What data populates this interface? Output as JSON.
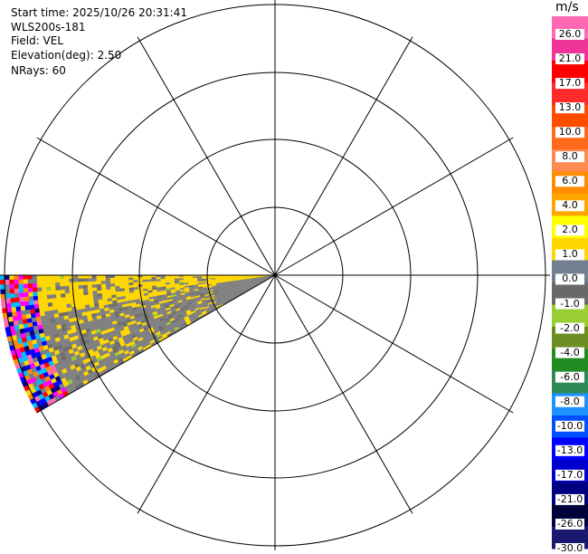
{
  "info": {
    "start_time": "Start time: 2025/10/26 20:31:41",
    "instrument": "WLS200s-181",
    "field": "Field: VEL",
    "elevation": "Elevation(deg): 2.50",
    "nrays": "NRays: 60"
  },
  "colorbar": {
    "unit": "m/s",
    "ticks": [
      "26.0",
      "21.0",
      "17.0",
      "13.0",
      "10.0",
      "8.0",
      "6.0",
      "4.0",
      "2.0",
      "1.0",
      "0.0",
      "-1.0",
      "-2.0",
      "-4.0",
      "-6.0",
      "-8.0",
      "-10.0",
      "-13.0",
      "-17.0",
      "-21.0",
      "-26.0",
      "-30.0"
    ],
    "colors": [
      "#ff69b4",
      "#ee3399",
      "#ff0000",
      "#ff2b2b",
      "#ff4d00",
      "#ff6a1a",
      "#ff8a50",
      "#ff8c00",
      "#ffa500",
      "#ffff00",
      "#ffd700",
      "#708090",
      "#696969",
      "#9acd32",
      "#6b8e23",
      "#228b22",
      "#2e8b57",
      "#1e90ff",
      "#0050ff",
      "#0000ff",
      "#0000cd",
      "#000080",
      "#00003b",
      "#191970"
    ]
  },
  "radar_colors": {
    "yellow": "#ffd700",
    "gray": "#808080",
    "dark_gray": "#6e6e6e",
    "green": "#9acd32",
    "noise": [
      "#ff00ff",
      "#0000ff",
      "#ffd700",
      "#ff0000",
      "#00bfff",
      "#ff69b4",
      "#708090",
      "#000080",
      "#ff8c00"
    ]
  }
}
